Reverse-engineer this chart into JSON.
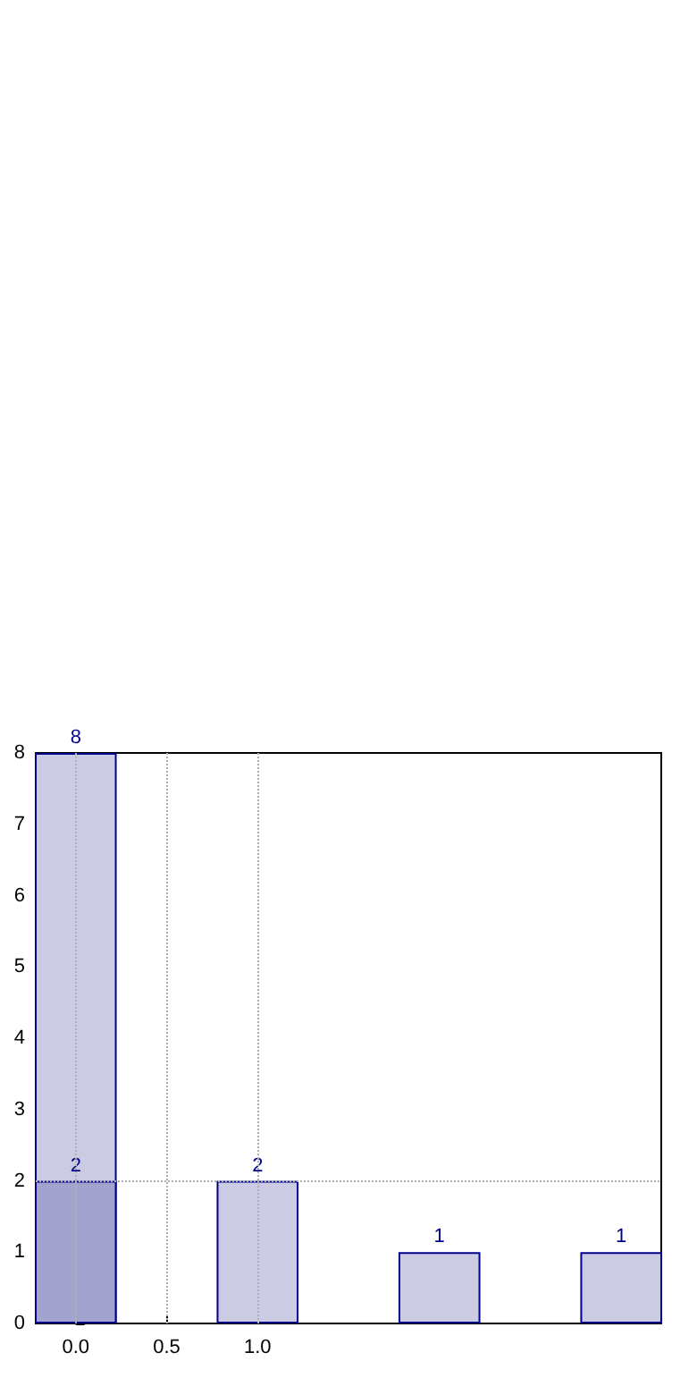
{
  "chart_data": {
    "type": "bar",
    "x": [
      0,
      1,
      2,
      3
    ],
    "series": [
      {
        "color": "#cbcbe3",
        "values": [
          8,
          2,
          1,
          1
        ]
      },
      {
        "color": "#a3a3cf",
        "x": [
          0
        ],
        "values": [
          2
        ]
      }
    ],
    "xlim": [
      -0.22,
      3.22
    ],
    "xticks": [
      {
        "value": 0,
        "label": "0.0"
      },
      {
        "value": 0.5,
        "label": "0.5"
      },
      {
        "value": 1,
        "label": "1.0"
      }
    ],
    "ylim": [
      0,
      8
    ],
    "yticks": [
      0,
      1,
      2,
      3,
      4,
      5,
      6,
      7,
      8
    ],
    "grid": "x",
    "ref_lines": [
      {
        "axis": "y",
        "value": 2
      }
    ],
    "data_labels": true
  }
}
